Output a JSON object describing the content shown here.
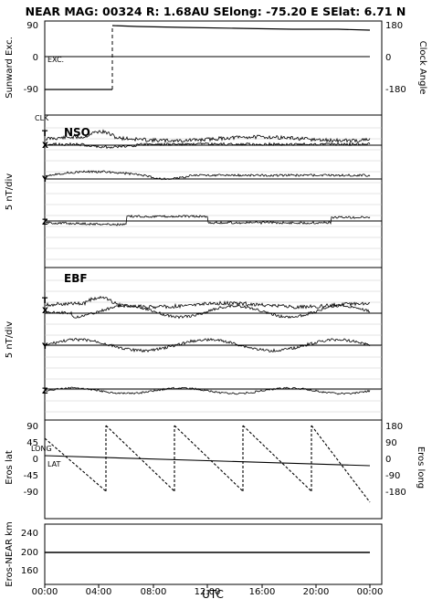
{
  "header": {
    "title": "NEAR MAG: 00324  R: 1.68AU  SElong:  -75.20 E  SElat:    6.71 N"
  },
  "x_axis": {
    "label": "UTC",
    "ticks": [
      "00:00",
      "04:00",
      "08:00",
      "12:00",
      "16:00",
      "20:00",
      "00:00"
    ]
  },
  "chart_data": [
    {
      "type": "line",
      "ylabel_left": "Sunward Exc.",
      "ylabel_right": "Clock Angle",
      "yticks_left": [
        "90",
        "0",
        "-90"
      ],
      "yticks_right": [
        "180",
        "0",
        "-180"
      ],
      "ylim_left": [
        -100,
        100
      ],
      "ylim_right": [
        -200,
        200
      ],
      "series": [
        {
          "name": "EXC.",
          "x_hours": [
            0,
            24
          ],
          "values": [
            0,
            0
          ]
        },
        {
          "name": "CLK",
          "x_hours": [
            0,
            4.6,
            4.6,
            5,
            10,
            14,
            20,
            23
          ],
          "values": [
            -180,
            -180,
            180,
            176,
            172,
            168,
            164,
            160
          ]
        }
      ]
    },
    {
      "type": "line",
      "title": "NSO",
      "ylabel": "5 nT/div",
      "series": [
        {
          "name": "T",
          "x_hours": [
            0,
            4,
            6,
            12,
            18,
            24
          ],
          "values": [
            1.0,
            1.8,
            0.7,
            0.6,
            0.6,
            0.5
          ]
        },
        {
          "name": "X",
          "x_hours": [
            0,
            24
          ],
          "values": [
            0,
            0
          ]
        },
        {
          "name": "Y",
          "x_hours": [
            0,
            24
          ],
          "values": [
            0,
            0
          ]
        },
        {
          "name": "Z",
          "x_hours": [
            0,
            24
          ],
          "values": [
            0,
            0
          ]
        }
      ]
    },
    {
      "type": "line",
      "title": "EBF",
      "ylabel": "5 nT/div",
      "series": [
        {
          "name": "T",
          "x_hours": [
            0,
            4,
            6,
            12,
            18,
            24
          ],
          "values": [
            1.0,
            1.8,
            0.7,
            0.6,
            0.6,
            0.5
          ]
        },
        {
          "name": "X",
          "x_hours": [
            0,
            24
          ],
          "values": [
            0,
            0
          ]
        },
        {
          "name": "Y",
          "x_hours": [
            0,
            24
          ],
          "values": [
            0,
            0
          ]
        },
        {
          "name": "Z",
          "x_hours": [
            0,
            24
          ],
          "values": [
            0,
            0
          ]
        }
      ]
    },
    {
      "type": "line",
      "ylabel_left": "Eros lat",
      "ylabel_right": "Eros long",
      "yticks_left": [
        "90",
        "45",
        "0",
        "-45",
        "-90"
      ],
      "yticks_right": [
        "180",
        "90",
        "0",
        "-90",
        "-180"
      ],
      "ylim_left": [
        -90,
        90
      ],
      "ylim_right": [
        -180,
        180
      ],
      "series": [
        {
          "name": "LAT",
          "x_hours": [
            0,
            24
          ],
          "values": [
            8,
            -8
          ]
        },
        {
          "name": "LONG",
          "x_hours": [
            0,
            4.6,
            4.6,
            9.5,
            9.5,
            14.3,
            14.3,
            19.2,
            19.2,
            24
          ],
          "values": [
            100,
            -180,
            180,
            -180,
            180,
            -180,
            180,
            -180,
            180,
            -100
          ]
        }
      ]
    },
    {
      "type": "line",
      "ylabel": "Eros-NEAR km",
      "yticks": [
        "240",
        "200",
        "160"
      ],
      "ylim": [
        130,
        260
      ],
      "series": [
        {
          "name": "Eros-NEAR km",
          "x_hours": [
            0,
            24
          ],
          "values": [
            193,
            193
          ]
        }
      ]
    }
  ]
}
